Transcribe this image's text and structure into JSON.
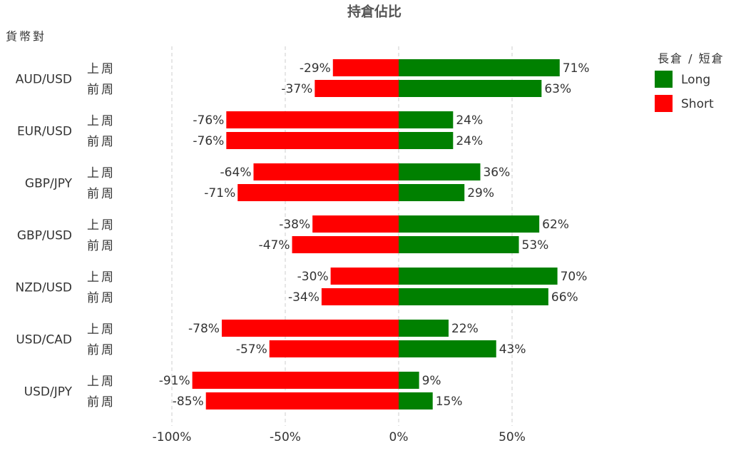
{
  "chart_data": {
    "type": "diverging-bar",
    "title": "持倉佔比",
    "y_label": "貨幣對",
    "legend_title": "長倉 / 短倉",
    "categories": [
      "AUD/USD",
      "EUR/USD",
      "GBP/JPY",
      "GBP/USD",
      "NZD/USD",
      "USD/CAD",
      "USD/JPY"
    ],
    "periods": [
      "上周",
      "前周"
    ],
    "series": [
      {
        "name": "Long",
        "color": "#008000",
        "values": [
          [
            71,
            63
          ],
          [
            24,
            24
          ],
          [
            36,
            29
          ],
          [
            62,
            53
          ],
          [
            70,
            66
          ],
          [
            22,
            43
          ],
          [
            9,
            15
          ]
        ],
        "value_labels": [
          [
            "71%",
            "63%"
          ],
          [
            "24%",
            "24%"
          ],
          [
            "36%",
            "29%"
          ],
          [
            "62%",
            "53%"
          ],
          [
            "70%",
            "66%"
          ],
          [
            "22%",
            "43%"
          ],
          [
            "9%",
            "15%"
          ]
        ]
      },
      {
        "name": "Short",
        "color": "#ff0000",
        "values": [
          [
            -29,
            -37
          ],
          [
            -76,
            -76
          ],
          [
            -64,
            -71
          ],
          [
            -38,
            -47
          ],
          [
            -30,
            -34
          ],
          [
            -78,
            -57
          ],
          [
            -91,
            -85
          ]
        ],
        "value_labels": [
          [
            "-29%",
            "-37%"
          ],
          [
            "-76%",
            "-76%"
          ],
          [
            "-64%",
            "-71%"
          ],
          [
            "-38%",
            "-47%"
          ],
          [
            "-30%",
            "-34%"
          ],
          [
            "-78%",
            "-57%"
          ],
          [
            "-91%",
            "-85%"
          ]
        ]
      }
    ],
    "xlim": [
      -100,
      100
    ],
    "xticks": [
      {
        "value": -100,
        "label": "-100%"
      },
      {
        "value": -50,
        "label": "-50%"
      },
      {
        "value": 0,
        "label": "0%"
      },
      {
        "value": 50,
        "label": "50%"
      }
    ],
    "grid": true,
    "legend": "top-right"
  }
}
